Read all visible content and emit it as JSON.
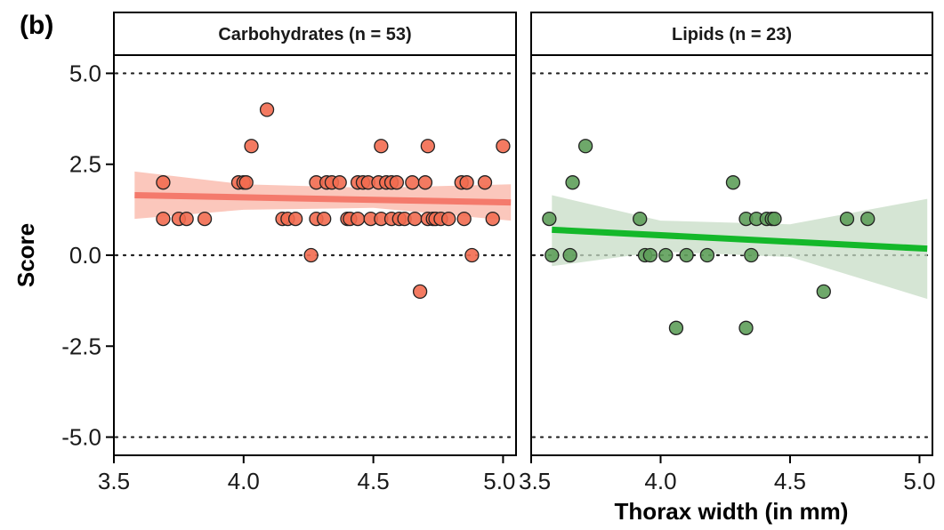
{
  "panel_label": "(b)",
  "chart_data": {
    "type": "scatter",
    "xlabel": "Thorax width (in mm)",
    "ylabel": "Score",
    "xlim": [
      3.5,
      5.05
    ],
    "ylim": [
      -5.5,
      5.5
    ],
    "x_ticks": [
      3.5,
      4.0,
      4.5,
      5.0
    ],
    "x_tick_labels": [
      "3.5",
      "4.0",
      "4.5",
      "5.0"
    ],
    "y_ticks": [
      5.0,
      2.5,
      0.0,
      -2.5,
      -5.0
    ],
    "y_tick_labels": [
      "5.0",
      "2.5",
      "0.0",
      "-2.5",
      "-5.0"
    ],
    "reference_lines": [
      5.0,
      0.0,
      -5.0
    ],
    "grid": false,
    "legend": "none",
    "facets": [
      {
        "title": "Carbohydrates (n = 53)",
        "point_color": "#f26b50",
        "line_color": "#f47a6c",
        "band_color": "#f9b4a6",
        "trend": {
          "x": [
            3.58,
            5.03
          ],
          "y": [
            1.65,
            1.45
          ]
        },
        "band": {
          "x": [
            3.58,
            4.0,
            4.5,
            5.03
          ],
          "upper": [
            2.3,
            1.95,
            1.85,
            1.95
          ],
          "lower": [
            1.0,
            1.25,
            1.3,
            0.95
          ]
        },
        "points": [
          [
            3.69,
            2
          ],
          [
            3.69,
            1
          ],
          [
            3.75,
            1
          ],
          [
            3.78,
            1
          ],
          [
            3.85,
            1
          ],
          [
            3.98,
            2
          ],
          [
            4.0,
            2
          ],
          [
            4.01,
            2
          ],
          [
            4.03,
            3
          ],
          [
            4.09,
            4
          ],
          [
            4.15,
            1
          ],
          [
            4.17,
            1
          ],
          [
            4.2,
            1
          ],
          [
            4.26,
            0
          ],
          [
            4.28,
            2
          ],
          [
            4.28,
            1
          ],
          [
            4.31,
            1
          ],
          [
            4.32,
            2
          ],
          [
            4.34,
            2
          ],
          [
            4.37,
            2
          ],
          [
            4.4,
            1
          ],
          [
            4.41,
            1
          ],
          [
            4.44,
            2
          ],
          [
            4.44,
            1
          ],
          [
            4.46,
            2
          ],
          [
            4.48,
            2
          ],
          [
            4.49,
            1
          ],
          [
            4.52,
            2
          ],
          [
            4.53,
            3
          ],
          [
            4.53,
            1
          ],
          [
            4.55,
            2
          ],
          [
            4.57,
            2
          ],
          [
            4.57,
            1
          ],
          [
            4.59,
            2
          ],
          [
            4.6,
            1
          ],
          [
            4.62,
            1
          ],
          [
            4.65,
            2
          ],
          [
            4.66,
            1
          ],
          [
            4.68,
            -1
          ],
          [
            4.7,
            2
          ],
          [
            4.71,
            3
          ],
          [
            4.71,
            1
          ],
          [
            4.73,
            1
          ],
          [
            4.74,
            1
          ],
          [
            4.76,
            1
          ],
          [
            4.79,
            1
          ],
          [
            4.84,
            2
          ],
          [
            4.86,
            2
          ],
          [
            4.85,
            1
          ],
          [
            4.88,
            0
          ],
          [
            4.93,
            2
          ],
          [
            4.96,
            1
          ],
          [
            5.0,
            3
          ]
        ]
      },
      {
        "title": "Lipids (n = 23)",
        "point_color": "#5e9e5a",
        "line_color": "#14b82a",
        "band_color": "#c7dcc5",
        "trend": {
          "x": [
            3.58,
            5.03
          ],
          "y": [
            0.7,
            0.18
          ]
        },
        "band": {
          "x": [
            3.58,
            4.0,
            4.5,
            5.03
          ],
          "upper": [
            1.65,
            0.95,
            0.85,
            1.55
          ],
          "lower": [
            -0.3,
            0.1,
            -0.05,
            -1.2
          ]
        },
        "points": [
          [
            3.57,
            1
          ],
          [
            3.58,
            0
          ],
          [
            3.65,
            0
          ],
          [
            3.66,
            2
          ],
          [
            3.71,
            3
          ],
          [
            3.92,
            1
          ],
          [
            3.94,
            0
          ],
          [
            3.96,
            0
          ],
          [
            4.02,
            0
          ],
          [
            4.06,
            -2
          ],
          [
            4.1,
            0
          ],
          [
            4.18,
            0
          ],
          [
            4.28,
            2
          ],
          [
            4.33,
            1
          ],
          [
            4.33,
            -2
          ],
          [
            4.35,
            0
          ],
          [
            4.37,
            1
          ],
          [
            4.41,
            1
          ],
          [
            4.43,
            1
          ],
          [
            4.44,
            1
          ],
          [
            4.63,
            -1
          ],
          [
            4.72,
            1
          ],
          [
            4.8,
            1
          ]
        ]
      }
    ]
  }
}
